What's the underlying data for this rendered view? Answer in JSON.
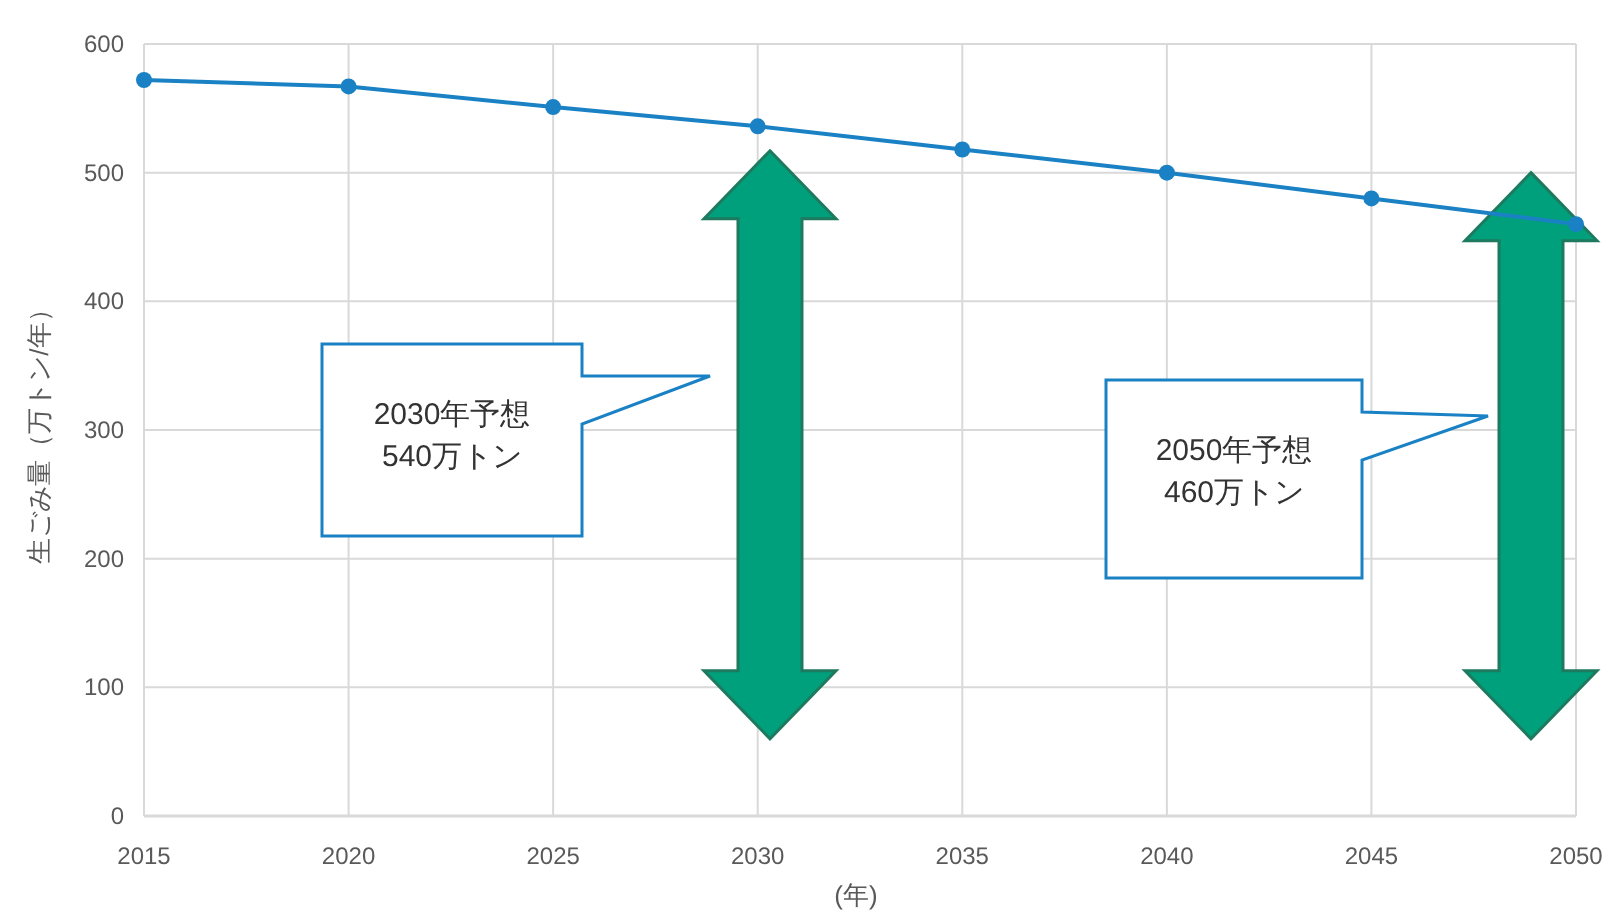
{
  "chart_data": {
    "type": "line",
    "xlabel": "(年)",
    "ylabel": "生ごみ量（万トン/年）",
    "x": [
      2015,
      2020,
      2025,
      2030,
      2035,
      2040,
      2045,
      2050
    ],
    "series": [
      {
        "color": "#1a82c4",
        "values": [
          572,
          567,
          551,
          536,
          518,
          500,
          480,
          460
        ]
      }
    ],
    "xlim": [
      2015,
      2050
    ],
    "xticks": [
      2015,
      2020,
      2025,
      2030,
      2035,
      2040,
      2045,
      2050
    ],
    "ylim": [
      0,
      600
    ],
    "yticks": [
      0,
      100,
      200,
      300,
      400,
      500,
      600
    ],
    "grid": true,
    "marker": "circle",
    "line_style": "solid",
    "annotations": [
      "2030年予想\n540万トン",
      "2050年予想\n460万トン"
    ]
  }
}
